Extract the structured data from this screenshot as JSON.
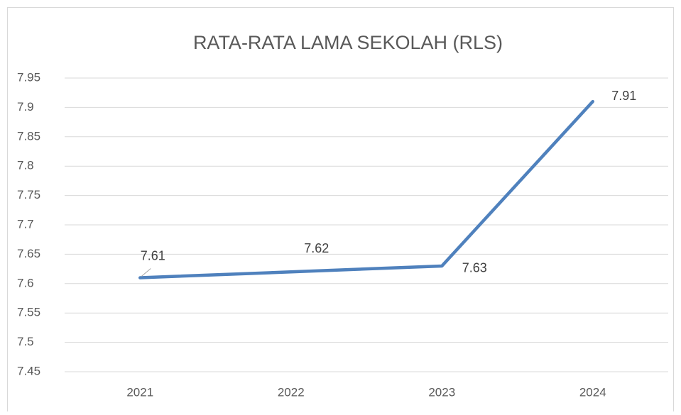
{
  "chart_data": {
    "type": "line",
    "title": "RATA-RATA LAMA SEKOLAH (RLS)",
    "categories": [
      "2021",
      "2022",
      "2023",
      "2024"
    ],
    "values": [
      7.61,
      7.62,
      7.63,
      7.91
    ],
    "color": "#4f81bd",
    "ylim": [
      7.45,
      7.95
    ],
    "yticks": [
      7.45,
      7.5,
      7.55,
      7.6,
      7.65,
      7.7,
      7.75,
      7.8,
      7.85,
      7.9,
      7.95
    ],
    "grid": true
  }
}
